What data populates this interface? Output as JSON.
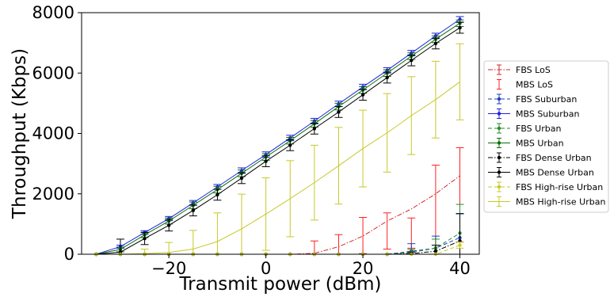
{
  "chart_data": {
    "type": "line",
    "title": "",
    "xlabel": "Transmit power (dBm)",
    "ylabel": "Throughput (Kbps)",
    "xlim": [
      -38,
      44
    ],
    "ylim": [
      0,
      8000
    ],
    "x_ticks": [
      -20,
      0,
      20,
      40
    ],
    "x_tick_labels": [
      "−20",
      "0",
      "20",
      "40"
    ],
    "y_ticks": [
      0,
      2000,
      4000,
      6000,
      8000
    ],
    "y_tick_labels": [
      "0",
      "2000",
      "4000",
      "6000",
      "8000"
    ],
    "grid": false,
    "legend_position": "right, outside plot",
    "x": [
      -35,
      -30,
      -25,
      -20,
      -15,
      -10,
      -5,
      0,
      5,
      10,
      15,
      20,
      25,
      30,
      35,
      40
    ],
    "series": [
      {
        "name": "FBS LoS",
        "color": "#d62728",
        "linestyle": "dashdot",
        "marker": "none",
        "values": [
          0,
          0,
          0,
          0,
          0,
          0,
          0,
          0,
          0,
          30,
          250,
          600,
          1100,
          1500,
          2000,
          2600
        ],
        "errors": [
          0,
          0,
          0,
          0,
          0,
          0,
          0,
          0,
          0,
          0,
          0,
          0,
          0,
          0,
          0,
          0
        ]
      },
      {
        "name": "MBS LoS",
        "color": "#ff2020",
        "linestyle": "none",
        "marker": "none",
        "values": [
          0,
          0,
          0,
          0,
          0,
          0,
          0,
          0,
          0,
          170,
          320,
          620,
          770,
          700,
          1350,
          1970
        ],
        "errors": [
          0,
          0,
          0,
          0,
          0,
          0,
          0,
          0,
          0,
          270,
          330,
          600,
          600,
          500,
          1600,
          1560
        ]
      },
      {
        "name": "FBS Suburban",
        "color": "#1f3fbf",
        "linestyle": "dashed",
        "marker": "circle",
        "values": [
          0,
          0,
          0,
          0,
          0,
          0,
          0,
          0,
          0,
          0,
          0,
          0,
          0,
          100,
          200,
          550
        ],
        "errors": [
          0,
          0,
          0,
          0,
          0,
          0,
          0,
          0,
          0,
          0,
          0,
          0,
          0,
          250,
          400,
          800
        ]
      },
      {
        "name": "MBS Suburban",
        "color": "#2020e0",
        "linestyle": "solid",
        "marker": "circle",
        "values": [
          0,
          250,
          720,
          1180,
          1700,
          2230,
          2770,
          3300,
          3850,
          4410,
          4980,
          5540,
          6090,
          6660,
          7230,
          7780
        ],
        "errors": [
          0,
          50,
          60,
          70,
          80,
          80,
          90,
          90,
          90,
          90,
          90,
          90,
          90,
          90,
          90,
          90
        ]
      },
      {
        "name": "FBS Urban",
        "color": "#2a8a2a",
        "linestyle": "dashed",
        "marker": "circle",
        "values": [
          0,
          0,
          0,
          0,
          0,
          0,
          0,
          0,
          0,
          0,
          0,
          0,
          0,
          60,
          200,
          700
        ],
        "errors": [
          0,
          0,
          0,
          0,
          0,
          0,
          0,
          0,
          0,
          0,
          0,
          0,
          0,
          100,
          300,
          950
        ]
      },
      {
        "name": "MBS Urban",
        "color": "#0a700a",
        "linestyle": "solid",
        "marker": "circle",
        "values": [
          0,
          160,
          640,
          1100,
          1620,
          2140,
          2680,
          3220,
          3760,
          4320,
          4890,
          5440,
          6000,
          6560,
          7120,
          7650
        ],
        "errors": [
          0,
          80,
          90,
          100,
          110,
          110,
          110,
          110,
          110,
          110,
          110,
          110,
          110,
          110,
          110,
          110
        ]
      },
      {
        "name": "FBS Dense Urban",
        "color": "#000000",
        "linestyle": "dashdot",
        "marker": "circle",
        "values": [
          0,
          0,
          0,
          0,
          0,
          0,
          0,
          0,
          0,
          0,
          0,
          0,
          0,
          20,
          100,
          440
        ],
        "errors": [
          0,
          0,
          0,
          0,
          0,
          0,
          0,
          0,
          0,
          0,
          0,
          0,
          0,
          50,
          200,
          900
        ]
      },
      {
        "name": "MBS Dense Urban",
        "color": "#000000",
        "linestyle": "solid",
        "marker": "circle",
        "values": [
          0,
          70,
          520,
          960,
          1450,
          1970,
          2520,
          3080,
          3610,
          4160,
          4710,
          5280,
          5850,
          6420,
          6980,
          7500
        ],
        "errors": [
          0,
          430,
          200,
          190,
          180,
          180,
          180,
          180,
          180,
          180,
          180,
          180,
          180,
          180,
          180,
          180
        ]
      },
      {
        "name": "FBS High-rise Urban",
        "color": "#c8c82a",
        "linestyle": "dashed",
        "marker": "circle",
        "values": [
          0,
          0,
          0,
          0,
          0,
          0,
          0,
          0,
          0,
          0,
          0,
          0,
          0,
          0,
          0,
          300
        ],
        "errors": [
          0,
          0,
          0,
          0,
          0,
          0,
          0,
          0,
          0,
          0,
          0,
          0,
          0,
          0,
          0,
          100
        ]
      },
      {
        "name": "MBS High-rise Urban",
        "color": "#c8c82a",
        "linestyle": "solid",
        "marker": "none",
        "values": [
          0,
          0,
          20,
          60,
          170,
          420,
          840,
          1330,
          1840,
          2370,
          2930,
          3500,
          4020,
          4590,
          5120,
          5710
        ],
        "errors": [
          0,
          0,
          150,
          330,
          620,
          950,
          1150,
          1200,
          1260,
          1240,
          1270,
          1270,
          1300,
          1290,
          1270,
          1260
        ]
      }
    ]
  }
}
